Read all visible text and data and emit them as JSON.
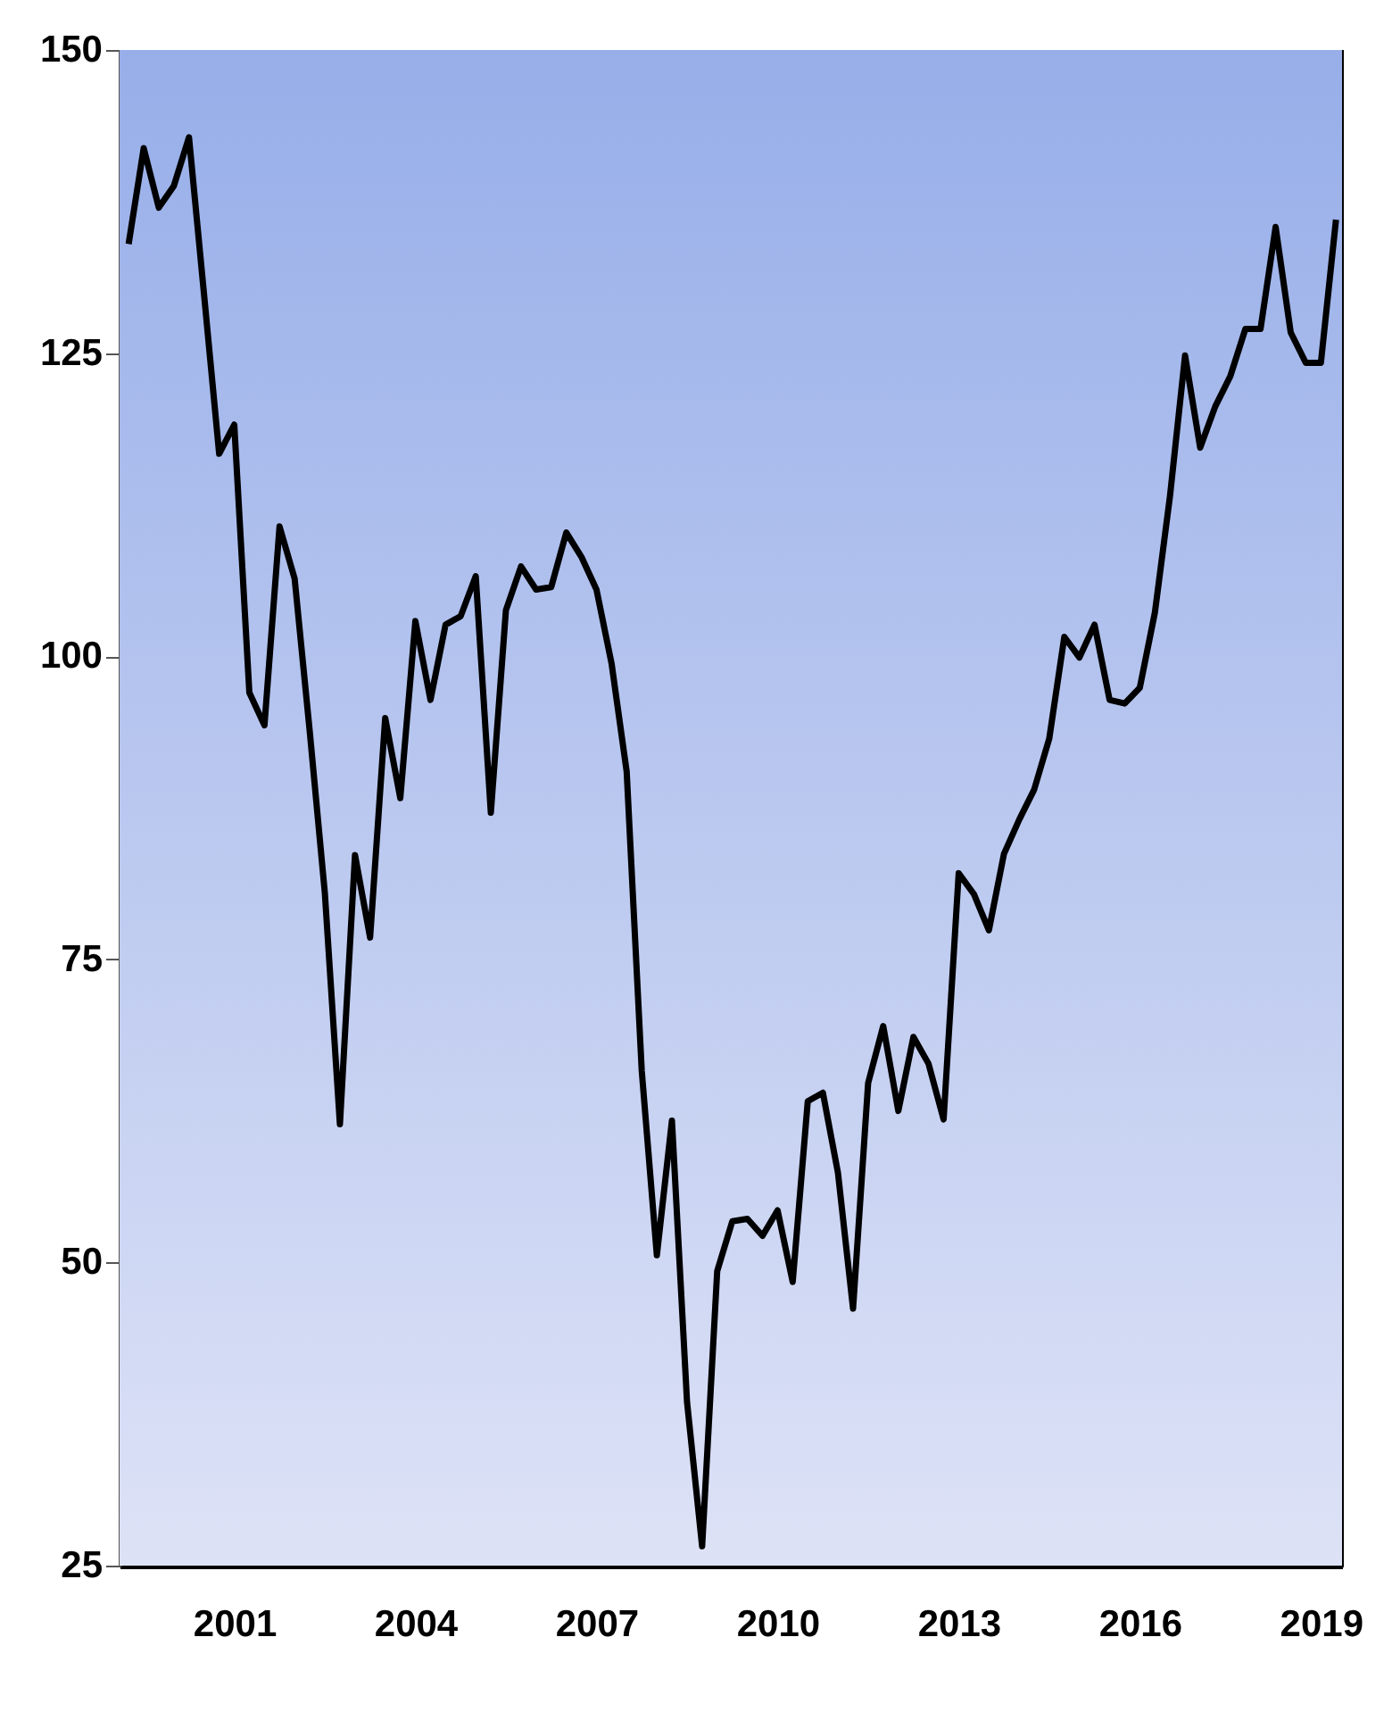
{
  "chart_data": {
    "type": "line",
    "xlim": [
      1999.1,
      2019.35
    ],
    "xticks": [
      2001,
      2004,
      2007,
      2010,
      2013,
      2016,
      2019
    ],
    "ylim": [
      25,
      150
    ],
    "yticks": [
      25,
      50,
      75,
      100,
      125,
      150
    ],
    "grid": false,
    "legend": false,
    "marker": "none",
    "line_style": "solid",
    "x": [
      1999.25,
      1999.5,
      1999.75,
      2000,
      2000.25,
      2000.5,
      2000.75,
      2001,
      2001.25,
      2001.5,
      2001.75,
      2002,
      2002.25,
      2002.5,
      2002.75,
      2003,
      2003.25,
      2003.5,
      2003.75,
      2004,
      2004.25,
      2004.5,
      2004.75,
      2005,
      2005.25,
      2005.5,
      2005.75,
      2006,
      2006.25,
      2006.5,
      2006.75,
      2007,
      2007.25,
      2007.5,
      2007.75,
      2008,
      2008.25,
      2008.5,
      2008.75,
      2009,
      2009.25,
      2009.5,
      2009.75,
      2010,
      2010.25,
      2010.5,
      2010.75,
      2011,
      2011.25,
      2011.5,
      2011.75,
      2012,
      2012.25,
      2012.5,
      2012.75,
      2013,
      2013.25,
      2013.5,
      2013.75,
      2014,
      2014.25,
      2014.5,
      2014.75,
      2015,
      2015.25,
      2015.5,
      2015.75,
      2016,
      2016.25,
      2016.5,
      2016.75,
      2017,
      2017.25,
      2017.5,
      2017.75,
      2018,
      2018.25,
      2018.5,
      2018.75,
      2019,
      2019.25
    ],
    "series": [
      {
        "color": "#000000",
        "values": [
          134.0,
          141.9,
          137.0,
          138.8,
          142.8,
          129.8,
          116.7,
          119.1,
          97.0,
          94.3,
          110.7,
          106.4,
          93.8,
          80.5,
          61.4,
          83.6,
          76.8,
          94.9,
          88.3,
          102.9,
          96.4,
          102.6,
          103.3,
          106.6,
          87.1,
          103.8,
          107.4,
          105.5,
          105.7,
          110.2,
          108.2,
          105.5,
          99.4,
          90.5,
          65.8,
          50.6,
          61.7,
          38.5,
          26.6,
          49.3,
          53.4,
          53.6,
          52.2,
          54.3,
          48.4,
          63.3,
          64.0,
          57.4,
          46.2,
          64.8,
          69.5,
          62.5,
          68.6,
          66.4,
          61.8,
          82.1,
          80.4,
          77.4,
          83.7,
          86.5,
          89.0,
          93.2,
          101.6,
          99.9,
          102.6,
          96.4,
          96.1,
          97.4,
          103.6,
          113.2,
          124.8,
          117.2,
          120.6,
          123.1,
          127.0,
          127.0,
          135.4,
          126.7,
          124.2,
          124.2,
          136.0
        ]
      }
    ]
  }
}
